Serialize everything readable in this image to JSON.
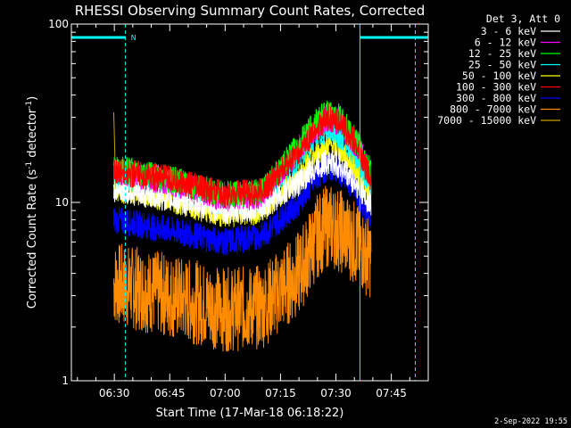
{
  "chart_data": {
    "type": "line",
    "title": "RHESSI Observing Summary Count Rates, Corrected",
    "xlabel": "Start Time (17-Mar-18 06:18:22)",
    "ylabel_prefix": "Corrected Count Rate (s",
    "ylabel_sup1": "-1",
    "ylabel_mid": " detector",
    "ylabel_sup2": "-1",
    "ylabel_suffix": ")",
    "yscale": "log",
    "ylim": [
      1,
      100
    ],
    "xlim": [
      "06:18:22",
      "07:55:00"
    ],
    "x_ticks": [
      "06:30",
      "06:45",
      "07:00",
      "07:15",
      "07:30",
      "07:45"
    ],
    "y_ticks": [
      "1",
      "10",
      "100"
    ],
    "legend_title": "Det 3, Att 0",
    "legend_position": "top-right, outside plot",
    "data_start": "06:29:50",
    "data_end": "07:39:30",
    "flags": [
      {
        "label": "N",
        "start": "06:18:22",
        "end": "06:33:00"
      },
      {
        "label": "",
        "start": "07:36:30",
        "end": "07:55:00"
      }
    ],
    "saa_boundaries": [
      "06:18:22",
      "06:33:00",
      "07:36:30",
      "07:51:30"
    ],
    "series": [
      {
        "name": "3 - 6 keV",
        "color": "#ffffff",
        "x": [
          "06:30",
          "06:45",
          "07:00",
          "07:10",
          "07:20",
          "07:25",
          "07:28",
          "07:31",
          "07:35",
          "07:39"
        ],
        "y": [
          12,
          10.5,
          9,
          9.5,
          13,
          16,
          17,
          16,
          13,
          10
        ]
      },
      {
        "name": "6 - 12 keV",
        "color": "#ff00ff",
        "x": [
          "06:30",
          "06:45",
          "07:00",
          "07:10",
          "07:20",
          "07:25",
          "07:28",
          "07:31",
          "07:35",
          "07:39"
        ],
        "y": [
          15,
          13,
          10.5,
          11,
          20,
          27,
          30,
          28,
          22,
          15
        ]
      },
      {
        "name": "12 - 25 keV",
        "color": "#00ff00",
        "x": [
          "06:30",
          "06:45",
          "07:00",
          "07:10",
          "07:20",
          "07:25",
          "07:28",
          "07:31",
          "07:35",
          "07:39"
        ],
        "y": [
          15.5,
          13.5,
          11,
          11.5,
          21,
          29,
          32,
          30,
          23,
          15.5
        ]
      },
      {
        "name": "25 - 50 keV",
        "color": "#00ffff",
        "x": [
          "06:30",
          "06:45",
          "07:00",
          "07:10",
          "07:20",
          "07:25",
          "07:28",
          "07:31",
          "07:35",
          "07:39"
        ],
        "y": [
          14,
          12.5,
          10,
          10.5,
          18,
          24,
          26,
          24,
          19,
          13
        ]
      },
      {
        "name": "50 - 100 keV",
        "color": "#ffff00",
        "x": [
          "06:30",
          "06:45",
          "07:00",
          "07:10",
          "07:20",
          "07:25",
          "07:28",
          "07:31",
          "07:35",
          "07:39"
        ],
        "y": [
          12,
          10.5,
          8.5,
          9,
          14,
          19,
          21,
          20,
          16,
          11
        ]
      },
      {
        "name": "100 - 300 keV",
        "color": "#ff0000",
        "x": [
          "06:30",
          "06:45",
          "07:00",
          "07:10",
          "07:20",
          "07:25",
          "07:28",
          "07:31",
          "07:35",
          "07:39"
        ],
        "y": [
          15,
          13.5,
          11,
          11.5,
          19,
          26,
          30,
          28,
          22,
          14
        ]
      },
      {
        "name": "300 - 800 keV",
        "color": "#0000ff",
        "x": [
          "06:30",
          "06:45",
          "07:00",
          "07:10",
          "07:20",
          "07:25",
          "07:28",
          "07:31",
          "07:35",
          "07:39"
        ],
        "y": [
          8,
          7,
          6,
          6.5,
          10,
          14,
          16,
          15,
          12,
          8
        ]
      },
      {
        "name": "800 - 7000 keV",
        "color": "#ff8c00",
        "x": [
          "06:30",
          "06:45",
          "07:00",
          "07:10",
          "07:20",
          "07:25",
          "07:28",
          "07:31",
          "07:35",
          "07:39"
        ],
        "y": [
          3.5,
          3,
          2.5,
          2.6,
          4,
          6.5,
          7.5,
          7,
          6,
          5
        ]
      },
      {
        "name": "7000 - 15000 keV",
        "color": "#c8a000",
        "x": [
          "06:29:50",
          "06:30:10"
        ],
        "y": [
          32,
          18
        ]
      }
    ]
  },
  "footer": {
    "date_stamp": "2-Sep-2022 19:55"
  }
}
